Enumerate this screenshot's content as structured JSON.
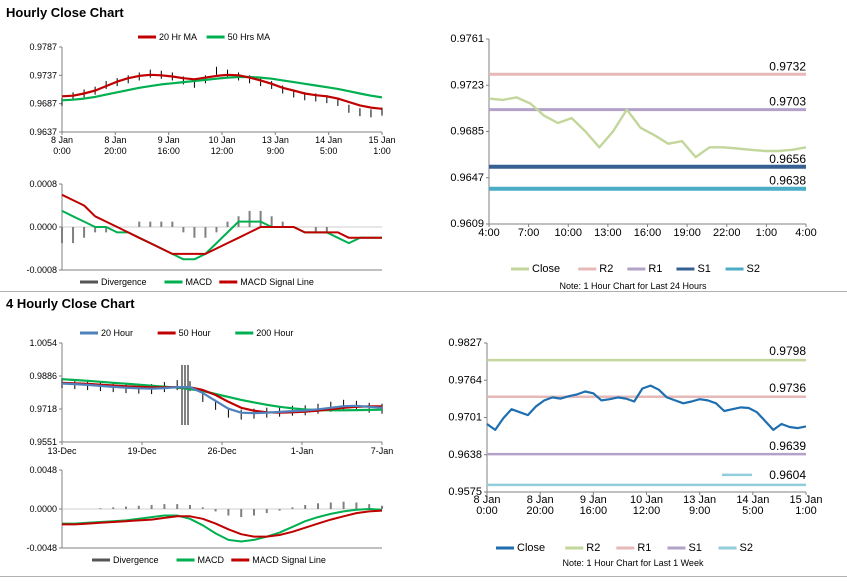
{
  "sections": {
    "hourly_title": "Hourly Close Chart",
    "four_hourly_title": "4 Hourly Close Chart"
  },
  "colors": {
    "ma20": "#c00000",
    "ma50": "#00b050",
    "divergence": "#808080",
    "macd": "#00b050",
    "signal": "#c00000",
    "close_green": "#c3d69b",
    "r2_pink": "#e6b9b8",
    "r1_purple": "#b3a2c7",
    "s1_blue": "#376092",
    "s2_teal": "#4bacc6",
    "close_blue": "#1f6fb0",
    "ma20_4h": "#4f81bd",
    "ma50_4h": "#c00000",
    "ma200_4h": "#00b050"
  },
  "chart_data": [
    {
      "id": "hourly_price",
      "type": "line",
      "legend": [
        "20 Hr MA",
        "50 Hrs MA"
      ],
      "yticks": [
        "0.9787",
        "0.9737",
        "0.9687",
        "0.9637"
      ],
      "ylim": [
        0.9637,
        0.9787
      ],
      "xticks": [
        [
          "8 Jan",
          "0:00"
        ],
        [
          "8 Jan",
          "20:00"
        ],
        [
          "9 Jan",
          "16:00"
        ],
        [
          "10 Jan",
          "12:00"
        ],
        [
          "13 Jan",
          "9:00"
        ],
        [
          "14 Jan",
          "5:00"
        ],
        [
          "15 Jan",
          "1:00"
        ]
      ],
      "price": [
        0.969,
        0.97,
        0.9705,
        0.971,
        0.972,
        0.9725,
        0.973,
        0.9735,
        0.974,
        0.9738,
        0.9735,
        0.9728,
        0.9722,
        0.973,
        0.9745,
        0.974,
        0.9735,
        0.973,
        0.9725,
        0.972,
        0.9712,
        0.9705,
        0.97,
        0.9698,
        0.9695,
        0.969,
        0.9678,
        0.9672,
        0.967,
        0.9673
      ],
      "series": [
        {
          "name": "20 Hr MA",
          "values": [
            0.97,
            0.9701,
            0.9705,
            0.971,
            0.9718,
            0.9726,
            0.9732,
            0.9736,
            0.9738,
            0.9737,
            0.9735,
            0.9732,
            0.973,
            0.9733,
            0.9736,
            0.9738,
            0.9737,
            0.9733,
            0.9728,
            0.9722,
            0.9715,
            0.971,
            0.9705,
            0.9702,
            0.97,
            0.9696,
            0.969,
            0.9684,
            0.968,
            0.9678
          ]
        },
        {
          "name": "50 Hrs MA",
          "values": [
            0.9693,
            0.9694,
            0.9696,
            0.9699,
            0.9703,
            0.9707,
            0.9711,
            0.9715,
            0.9718,
            0.9721,
            0.9723,
            0.9725,
            0.9727,
            0.9729,
            0.9731,
            0.9733,
            0.9734,
            0.9734,
            0.9733,
            0.9731,
            0.9728,
            0.9725,
            0.9722,
            0.9719,
            0.9716,
            0.9713,
            0.9709,
            0.9705,
            0.9701,
            0.9698
          ]
        }
      ]
    },
    {
      "id": "hourly_macd",
      "type": "line",
      "legend": [
        "Divergence",
        "MACD",
        "MACD Signal Line"
      ],
      "yticks": [
        "0.0008",
        "0.0000",
        "-0.0008"
      ],
      "ylim": [
        -0.0008,
        0.0008
      ],
      "divergence": [
        -0.0003,
        -0.0003,
        -0.0002,
        -0.0001,
        -0.0001,
        0.0,
        0.0,
        0.0001,
        0.0001,
        0.0001,
        0.0001,
        -0.0001,
        -0.0002,
        -0.0002,
        -0.0001,
        0.0001,
        0.0002,
        0.0003,
        0.0003,
        0.0002,
        0.0001,
        0.0,
        0.0,
        -0.0001,
        -0.0001,
        0.0,
        0.0,
        0.0,
        0.0,
        0.0
      ],
      "series": [
        {
          "name": "MACD",
          "values": [
            0.0003,
            0.0002,
            0.0001,
            0.0,
            0.0,
            -0.0001,
            -0.0001,
            -0.0002,
            -0.0003,
            -0.0004,
            -0.0005,
            -0.0006,
            -0.0006,
            -0.0005,
            -0.0003,
            -0.0001,
            0.0001,
            0.0001,
            0.0001,
            0.0,
            0.0,
            0.0,
            -0.0001,
            -0.0001,
            -0.0001,
            -0.0002,
            -0.0003,
            -0.0002,
            -0.0002,
            -0.0002
          ]
        },
        {
          "name": "MACD Signal Line",
          "values": [
            0.0006,
            0.0005,
            0.0004,
            0.0002,
            0.0001,
            0.0,
            -0.0001,
            -0.0002,
            -0.0003,
            -0.0004,
            -0.0005,
            -0.0005,
            -0.0005,
            -0.0005,
            -0.0004,
            -0.0003,
            -0.0002,
            -0.0001,
            0.0,
            0.0,
            0.0,
            0.0,
            -0.0001,
            -0.0001,
            -0.0001,
            -0.0001,
            -0.0002,
            -0.0002,
            -0.0002,
            -0.0002
          ]
        }
      ]
    },
    {
      "id": "hourly_24h",
      "type": "line",
      "yticks": [
        "0.9761",
        "0.9723",
        "0.9685",
        "0.9647",
        "0.9609"
      ],
      "ylim": [
        0.9609,
        0.9761
      ],
      "xticks": [
        "4:00",
        "7:00",
        "10:00",
        "13:00",
        "16:00",
        "19:00",
        "22:00",
        "1:00",
        "4:00"
      ],
      "close": [
        0.9712,
        0.9711,
        0.9713,
        0.9708,
        0.9698,
        0.9692,
        0.9696,
        0.9685,
        0.9672,
        0.9685,
        0.9703,
        0.9688,
        0.9682,
        0.9675,
        0.9677,
        0.9664,
        0.9672,
        0.9672,
        0.9671,
        0.967,
        0.9669,
        0.9669,
        0.967,
        0.9672
      ],
      "levels": [
        {
          "name": "R2",
          "value": 0.9732,
          "label": "0.9732"
        },
        {
          "name": "R1",
          "value": 0.9703,
          "label": "0.9703"
        },
        {
          "name": "S1",
          "value": 0.9656,
          "label": "0.9656"
        },
        {
          "name": "S2",
          "value": 0.9638,
          "label": "0.9638"
        }
      ],
      "legend": [
        "Close",
        "R2",
        "R1",
        "S1",
        "S2"
      ],
      "note": "Note: 1 Hour Chart for Last 24 Hours"
    },
    {
      "id": "four_hourly_price",
      "type": "line",
      "legend": [
        "20 Hour",
        "50 Hour",
        "200 Hour"
      ],
      "yticks": [
        "1.0054",
        "0.9886",
        "0.9718",
        "0.9551"
      ],
      "ylim": [
        0.9551,
        1.0054
      ],
      "xticks": [
        "13-Dec",
        "19-Dec",
        "26-Dec",
        "1-Jan",
        "7-Jan"
      ],
      "price": [
        0.985,
        0.9845,
        0.984,
        0.9835,
        0.983,
        0.9825,
        0.9822,
        0.982,
        0.983,
        0.984,
        0.9835,
        0.978,
        0.974,
        0.97,
        0.969,
        0.9695,
        0.97,
        0.9705,
        0.971,
        0.9712,
        0.972,
        0.973,
        0.974,
        0.9735,
        0.9725,
        0.972
      ],
      "series": [
        {
          "name": "20 Hour",
          "values": [
            0.9848,
            0.9845,
            0.9841,
            0.9836,
            0.9831,
            0.9827,
            0.9824,
            0.9822,
            0.9825,
            0.983,
            0.983,
            0.98,
            0.976,
            0.972,
            0.97,
            0.9698,
            0.97,
            0.9704,
            0.9708,
            0.9711,
            0.9717,
            0.9725,
            0.9733,
            0.9735,
            0.973,
            0.9725
          ]
        },
        {
          "name": "50 Hour",
          "values": [
            0.9852,
            0.9849,
            0.9846,
            0.9842,
            0.9838,
            0.9834,
            0.9831,
            0.9829,
            0.9829,
            0.983,
            0.9829,
            0.9815,
            0.979,
            0.9755,
            0.9725,
            0.971,
            0.9702,
            0.97,
            0.9702,
            0.9705,
            0.971,
            0.9717,
            0.9725,
            0.973,
            0.9732,
            0.9732
          ]
        },
        {
          "name": "200 Hour",
          "values": [
            0.987,
            0.9866,
            0.9862,
            0.9857,
            0.9852,
            0.9847,
            0.9842,
            0.9837,
            0.9832,
            0.9827,
            0.982,
            0.981,
            0.9795,
            0.978,
            0.9765,
            0.9752,
            0.974,
            0.973,
            0.9722,
            0.9716,
            0.9713,
            0.9712,
            0.9712,
            0.9713,
            0.9714,
            0.9715
          ]
        }
      ]
    },
    {
      "id": "four_hourly_macd",
      "type": "line",
      "legend": [
        "Divergence",
        "MACD",
        "MACD Signal Line"
      ],
      "yticks": [
        "0.0048",
        "0.0000",
        "-0.0048"
      ],
      "ylim": [
        -0.0048,
        0.0048
      ],
      "divergence": [
        0.0,
        0.0,
        0.0,
        0.0001,
        0.0002,
        0.0003,
        0.0004,
        0.0005,
        0.0006,
        0.0006,
        0.0005,
        0.0002,
        -0.0003,
        -0.0008,
        -0.001,
        -0.0008,
        -0.0005,
        -0.0002,
        0.0002,
        0.0005,
        0.0007,
        0.0008,
        0.0009,
        0.0008,
        0.0006,
        0.0004
      ],
      "series": [
        {
          "name": "MACD",
          "values": [
            -0.0018,
            -0.0018,
            -0.0017,
            -0.0016,
            -0.0015,
            -0.0014,
            -0.0012,
            -0.001,
            -0.0008,
            -0.0008,
            -0.0012,
            -0.002,
            -0.003,
            -0.0038,
            -0.004,
            -0.0038,
            -0.0034,
            -0.0029,
            -0.0022,
            -0.0015,
            -0.001,
            -0.0006,
            -0.0003,
            -0.0001,
            0.0,
            -0.0001
          ]
        },
        {
          "name": "MACD Signal Line",
          "values": [
            -0.0019,
            -0.0019,
            -0.0018,
            -0.0017,
            -0.0016,
            -0.0015,
            -0.0014,
            -0.0013,
            -0.0011,
            -0.0009,
            -0.0009,
            -0.0012,
            -0.0018,
            -0.0025,
            -0.0031,
            -0.0034,
            -0.0034,
            -0.0032,
            -0.0028,
            -0.0023,
            -0.0018,
            -0.0013,
            -0.0009,
            -0.0005,
            -0.0003,
            -0.0002
          ]
        }
      ]
    },
    {
      "id": "four_hourly_week",
      "type": "line",
      "yticks": [
        "0.9827",
        "0.9764",
        "0.9701",
        "0.9638",
        "0.9575"
      ],
      "ylim": [
        0.9575,
        0.9827
      ],
      "xticks": [
        [
          "8 Jan",
          "0:00"
        ],
        [
          "8 Jan",
          "20:00"
        ],
        [
          "9 Jan",
          "16:00"
        ],
        [
          "10 Jan",
          "12:00"
        ],
        [
          "13 Jan",
          "9:00"
        ],
        [
          "14 Jan",
          "5:00"
        ],
        [
          "15 Jan",
          "1:00"
        ]
      ],
      "close": [
        0.969,
        0.968,
        0.97,
        0.9715,
        0.971,
        0.9705,
        0.972,
        0.973,
        0.9735,
        0.9733,
        0.9737,
        0.974,
        0.9745,
        0.9742,
        0.973,
        0.9732,
        0.9735,
        0.9733,
        0.9728,
        0.975,
        0.9755,
        0.9748,
        0.9735,
        0.973,
        0.9725,
        0.9728,
        0.9732,
        0.973,
        0.9725,
        0.9712,
        0.9715,
        0.9718,
        0.9717,
        0.971,
        0.9695,
        0.968,
        0.969,
        0.9685,
        0.9683,
        0.9686
      ],
      "levels": [
        {
          "name": "R2",
          "value": 0.9798,
          "label": "0.9798"
        },
        {
          "name": "R1",
          "value": 0.9736,
          "label": "0.9736"
        },
        {
          "name": "S1",
          "value": 0.9639,
          "label": "0.9639"
        },
        {
          "name": "S2",
          "value": 0.9604,
          "label": "0.9604"
        }
      ],
      "legend": [
        "Close",
        "R2",
        "R1",
        "S1",
        "S2"
      ],
      "note": "Note: 1 Hour Chart for Last 1 Week"
    }
  ]
}
